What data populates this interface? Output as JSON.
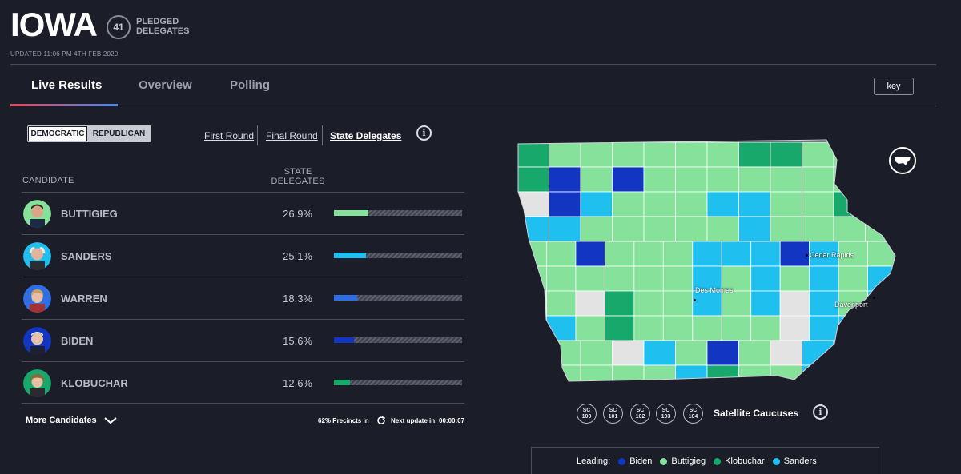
{
  "header": {
    "state": "IOWA",
    "delegate_count": "41",
    "delegate_label_1": "PLEDGED",
    "delegate_label_2": "DELEGATES",
    "updated": "UPDATED 11:06 PM 4TH FEB 2020"
  },
  "tabs": [
    {
      "label": "Live Results",
      "active": true
    },
    {
      "label": "Overview",
      "active": false
    },
    {
      "label": "Polling",
      "active": false
    }
  ],
  "key_button": "key",
  "party": {
    "democratic": "DEMOCRATIC",
    "republican": "REPUBLICAN",
    "selected": "DEMOCRATIC"
  },
  "rounds": {
    "first": "First Round",
    "final": "Final Round",
    "state": "State Delegates",
    "selected": "State Delegates"
  },
  "table": {
    "col_candidate": "CANDIDATE",
    "col_sd_1": "STATE",
    "col_sd_2": "DELEGATES",
    "rows": [
      {
        "name": "BUTTIGIEG",
        "pct": "26.9%",
        "share": 26.9,
        "color": "#86e29b"
      },
      {
        "name": "SANDERS",
        "pct": "25.1%",
        "share": 25.1,
        "color": "#1fc0ef"
      },
      {
        "name": "WARREN",
        "pct": "18.3%",
        "share": 18.3,
        "color": "#2f6fe3"
      },
      {
        "name": "BIDEN",
        "pct": "15.6%",
        "share": 15.6,
        "color": "#1236c2"
      },
      {
        "name": "KLOBUCHAR",
        "pct": "12.6%",
        "share": 12.6,
        "color": "#16a96b"
      }
    ]
  },
  "footer": {
    "more_candidates": "More Candidates",
    "precincts": "62% Precincts in",
    "next_update": "Next update in: 00:00:07"
  },
  "map": {
    "cities": {
      "cedar_rapids": "Cedar Rapids",
      "des_moines": "Des Moines",
      "davenport": "Davenport"
    }
  },
  "satellite": {
    "items": [
      {
        "l1": "SC",
        "l2": "100"
      },
      {
        "l1": "SC",
        "l2": "101"
      },
      {
        "l1": "SC",
        "l2": "102"
      },
      {
        "l1": "SC",
        "l2": "103"
      },
      {
        "l1": "SC",
        "l2": "104"
      }
    ],
    "label": "Satellite Caucuses"
  },
  "legend": {
    "title": "Leading:",
    "items": [
      {
        "name": "Biden",
        "color": "#1236c2"
      },
      {
        "name": "Buttigieg",
        "color": "#86e29b"
      },
      {
        "name": "Klobuchar",
        "color": "#16a96b"
      },
      {
        "name": "Sanders",
        "color": "#1fc0ef"
      }
    ]
  },
  "colors": {
    "background": "#1b1d29",
    "biden": "#1236c2",
    "buttigieg": "#86e29b",
    "klobuchar": "#16a96b",
    "sanders": "#1fc0ef",
    "no_result": "#e3e3e3"
  }
}
